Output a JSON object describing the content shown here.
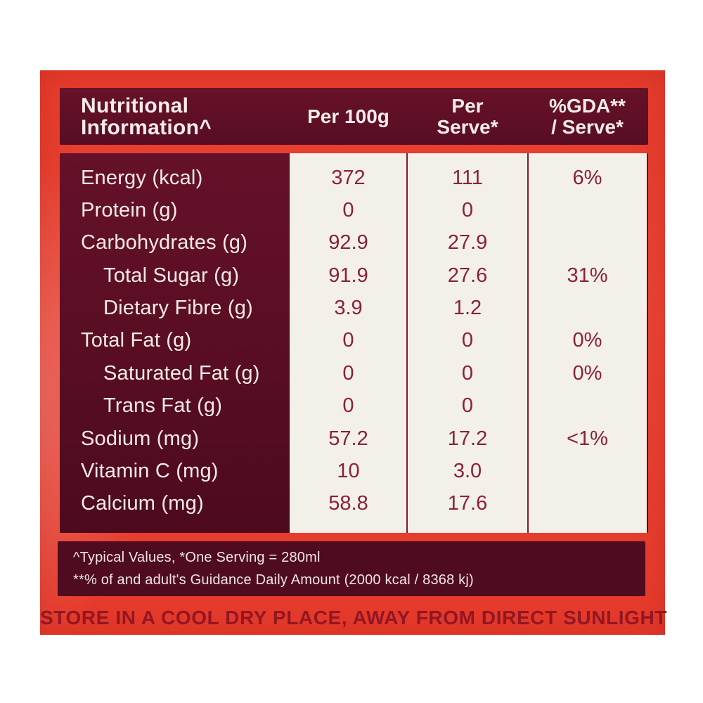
{
  "colors": {
    "panel_red": "#e8402f",
    "table_maroon": "#5c0f26",
    "footnote_maroon": "#4f0c20",
    "cream": "#f3f0ea",
    "value_text": "#8c2038",
    "label_text": "#f8ebe8",
    "storage_text": "#931622"
  },
  "header": {
    "title_line1": "Nutritional",
    "title_line2": "Information^",
    "per100g_label": "Per 100g",
    "per_serve_line1": "Per",
    "per_serve_line2": "Serve*",
    "gda_line1": "%GDA**",
    "gda_line2": "/ Serve*"
  },
  "table": {
    "rows": [
      {
        "label": "Energy (kcal)",
        "per_100g": "372",
        "per_serve": "111",
        "gda_per_serve": "6%"
      },
      {
        "label": "Protein (g)",
        "per_100g": "0",
        "per_serve": "0",
        "gda_per_serve": ""
      },
      {
        "label": "Carbohydrates (g)",
        "per_100g": "92.9",
        "per_serve": "27.9",
        "gda_per_serve": ""
      },
      {
        "label": "Total Sugar (g)",
        "per_100g": "91.9",
        "per_serve": "27.6",
        "gda_per_serve": "31%"
      },
      {
        "label": "Dietary Fibre (g)",
        "per_100g": "3.9",
        "per_serve": "1.2",
        "gda_per_serve": ""
      },
      {
        "label": "Total Fat (g)",
        "per_100g": "0",
        "per_serve": "0",
        "gda_per_serve": "0%"
      },
      {
        "label": "Saturated Fat (g)",
        "per_100g": "0",
        "per_serve": "0",
        "gda_per_serve": "0%"
      },
      {
        "label": "Trans Fat (g)",
        "per_100g": "0",
        "per_serve": "0",
        "gda_per_serve": ""
      },
      {
        "label": "Sodium (mg)",
        "per_100g": "57.2",
        "per_serve": "17.2",
        "gda_per_serve": "<1%"
      },
      {
        "label": "Vitamin C (mg)",
        "per_100g": "10",
        "per_serve": "3.0",
        "gda_per_serve": ""
      },
      {
        "label": "Calcium (mg)",
        "per_100g": "58.8",
        "per_serve": "17.6",
        "gda_per_serve": ""
      }
    ]
  },
  "footnotes": {
    "line1": "^Typical Values, *One Serving = 280ml",
    "line2": "**% of and adult's Guidance Daily Amount (2000 kcal / 8368 kj)"
  },
  "storage_notice": "STORE IN A COOL DRY PLACE, AWAY FROM DIRECT SUNLIGHT"
}
